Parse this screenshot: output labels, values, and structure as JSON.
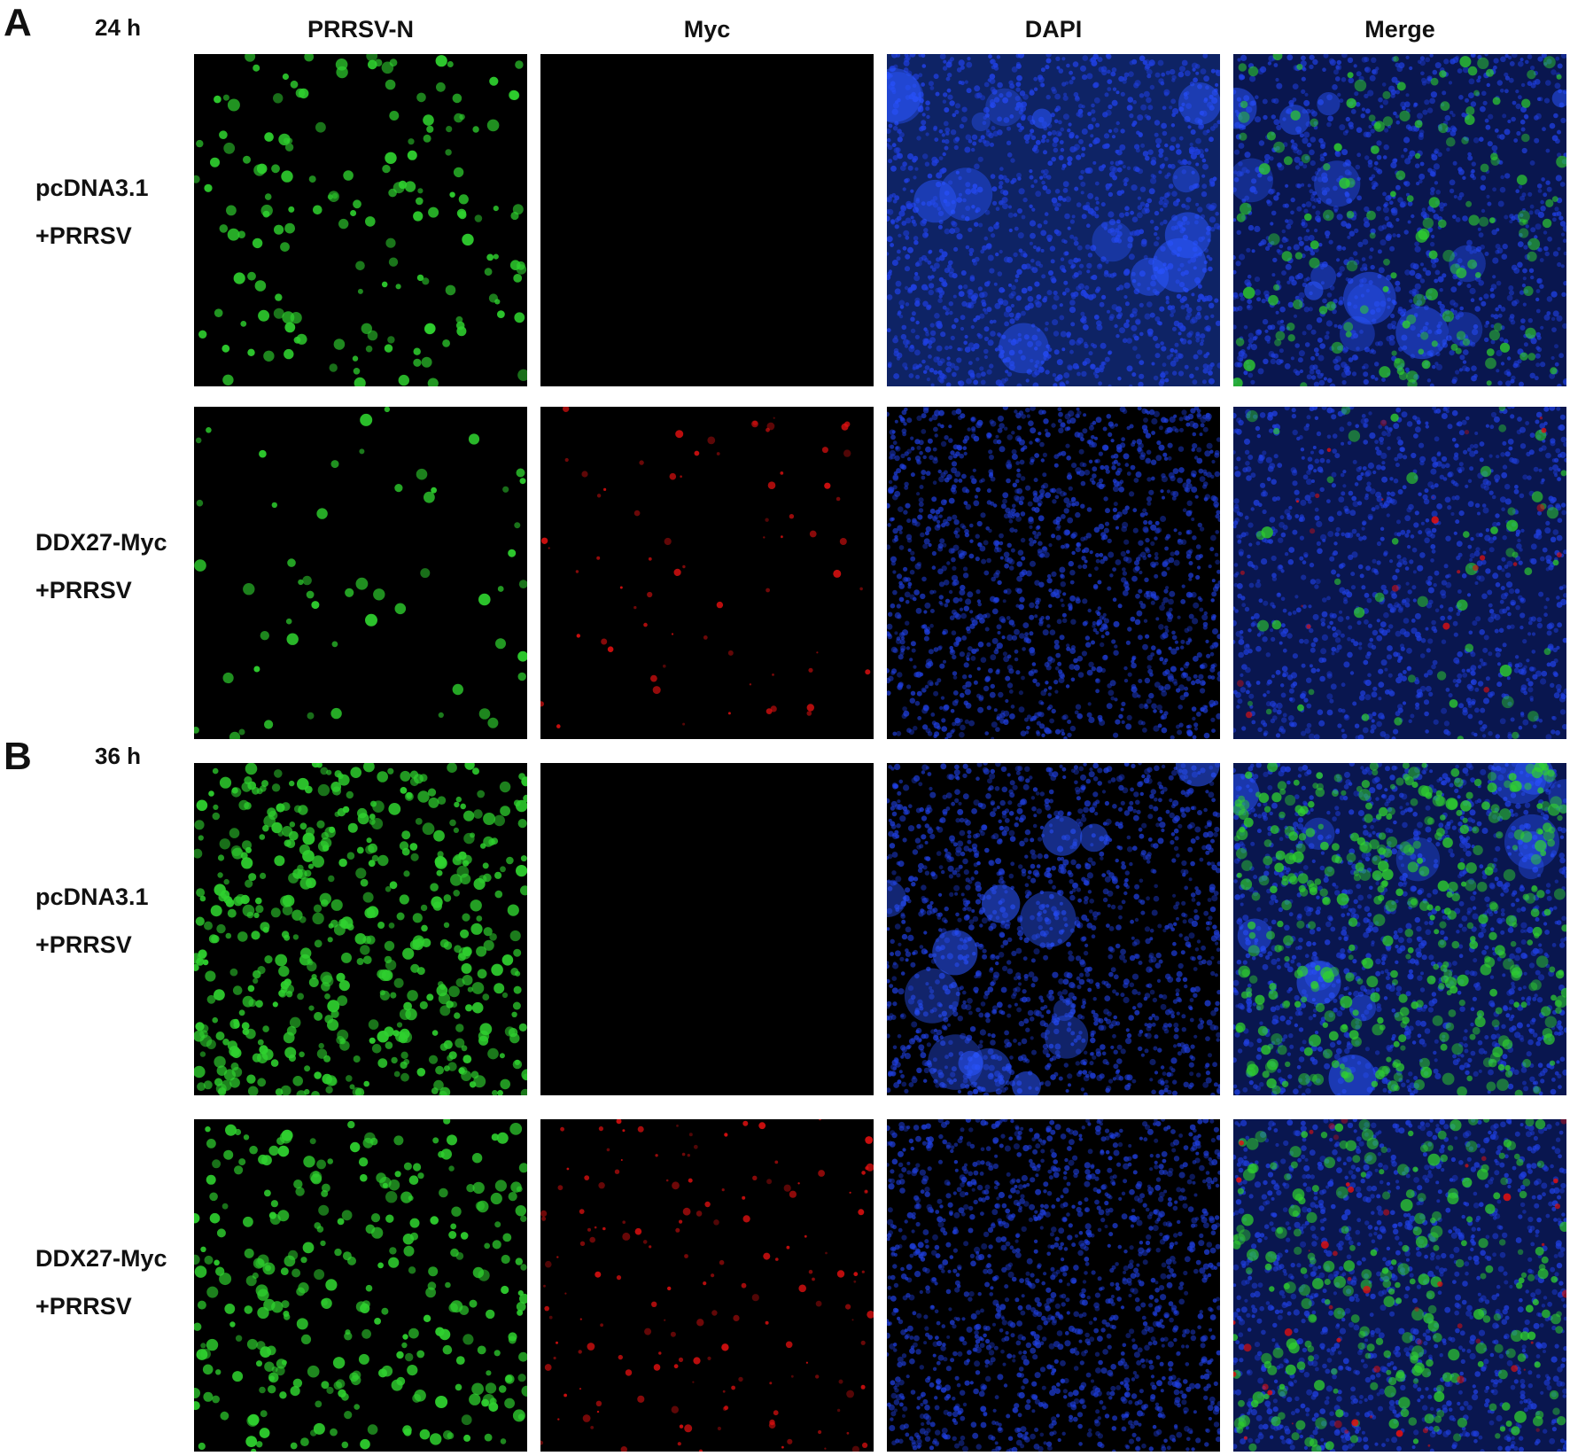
{
  "panel_a": {
    "letter": "A",
    "time": "24 h"
  },
  "panel_b": {
    "letter": "B",
    "time": "36 h"
  },
  "columns": [
    "PRRSV-N",
    "Myc",
    "DAPI",
    "Merge"
  ],
  "rows": {
    "a1": {
      "line1": "pcDNA3.1",
      "line2": "+PRRSV"
    },
    "a2": {
      "line1": "DDX27-Myc",
      "line2": "+PRRSV"
    },
    "b1": {
      "line1": "pcDNA3.1",
      "line2": "+PRRSV"
    },
    "b2": {
      "line1": "DDX27-Myc",
      "line2": "+PRRSV"
    }
  },
  "colors": {
    "prrsv_n_green": "#2fd12f",
    "myc_red": "#e01010",
    "dapi_blue": "#1f3fe0",
    "background": "#000000"
  }
}
